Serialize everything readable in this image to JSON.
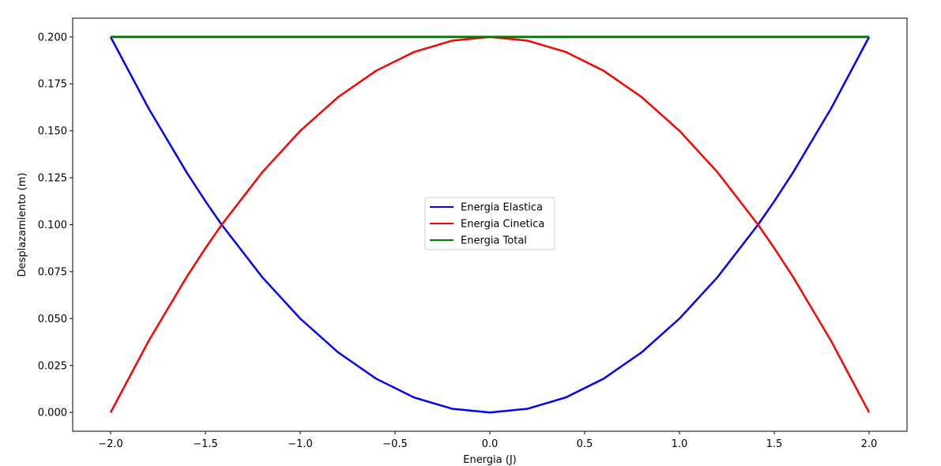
{
  "chart_data": {
    "type": "line",
    "title": "",
    "xlabel": "Energia (J)",
    "ylabel": "Desplazamiento (m)",
    "xlim": [
      -2.2,
      2.2
    ],
    "ylim": [
      -0.01,
      0.21
    ],
    "xticks": [
      -2.0,
      -1.5,
      -1.0,
      -0.5,
      0.0,
      0.5,
      1.0,
      1.5,
      2.0
    ],
    "xtick_labels": [
      "−2.0",
      "−1.5",
      "−1.0",
      "−0.5",
      "0.0",
      "0.5",
      "1.0",
      "1.5",
      "2.0"
    ],
    "yticks": [
      0.0,
      0.025,
      0.05,
      0.075,
      0.1,
      0.125,
      0.15,
      0.175,
      0.2
    ],
    "ytick_labels": [
      "0.000",
      "0.025",
      "0.050",
      "0.075",
      "0.100",
      "0.125",
      "0.150",
      "0.175",
      "0.200"
    ],
    "grid": false,
    "legend_position": "center",
    "x": [
      -2.0,
      -1.8,
      -1.6,
      -1.5,
      -1.4142,
      -1.2,
      -1.0,
      -0.8,
      -0.6,
      -0.4,
      -0.2,
      0.0,
      0.2,
      0.4,
      0.6,
      0.8,
      1.0,
      1.2,
      1.4142,
      1.5,
      1.6,
      1.8,
      2.0
    ],
    "series": [
      {
        "name": "Energia Elastica",
        "color": "#0000ff",
        "values": [
          0.2,
          0.162,
          0.128,
          0.1125,
          0.1,
          0.072,
          0.05,
          0.032,
          0.018,
          0.008,
          0.002,
          0.0,
          0.002,
          0.008,
          0.018,
          0.032,
          0.05,
          0.072,
          0.1,
          0.1125,
          0.128,
          0.162,
          0.2
        ]
      },
      {
        "name": "Energia Cinetica",
        "color": "#ff0000",
        "values": [
          0.0,
          0.038,
          0.072,
          0.0875,
          0.1,
          0.128,
          0.15,
          0.168,
          0.182,
          0.192,
          0.198,
          0.2,
          0.198,
          0.192,
          0.182,
          0.168,
          0.15,
          0.128,
          0.1,
          0.0875,
          0.072,
          0.038,
          0.0
        ]
      },
      {
        "name": "Energia Total",
        "color": "#008000",
        "values": [
          0.2,
          0.2,
          0.2,
          0.2,
          0.2,
          0.2,
          0.2,
          0.2,
          0.2,
          0.2,
          0.2,
          0.2,
          0.2,
          0.2,
          0.2,
          0.2,
          0.2,
          0.2,
          0.2,
          0.2,
          0.2,
          0.2,
          0.2
        ]
      }
    ]
  }
}
